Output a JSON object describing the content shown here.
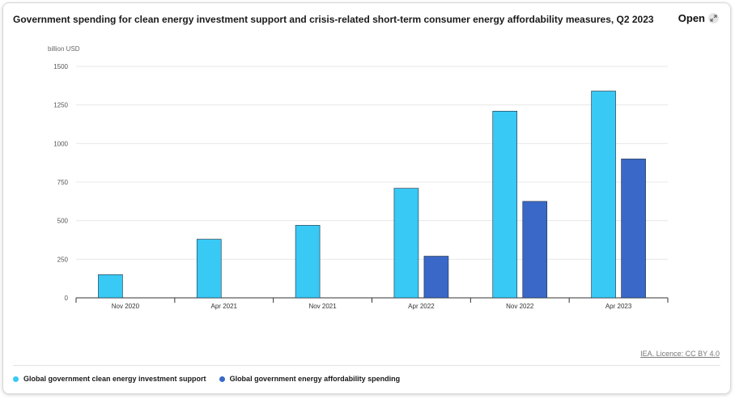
{
  "header": {
    "title": "Government spending for clean energy investment support and crisis-related short-term consumer energy affordability measures, Q2 2023",
    "open_label": "Open",
    "open_icon": "expand-icon"
  },
  "credit": "IEA. Licence: CC BY 4.0",
  "colors": {
    "clean_energy": "#38c9f5",
    "affordability": "#3a68c8",
    "grid": "#e8e8e8",
    "axis": "#333333"
  },
  "chart_data": {
    "type": "bar",
    "ylabel": "billion USD",
    "ylim": [
      0,
      1500
    ],
    "yticks": [
      "0",
      "250",
      "500",
      "750",
      "1000",
      "1250",
      "1500"
    ],
    "categories": [
      "Nov 2020",
      "Apr 2021",
      "Nov 2021",
      "Apr 2022",
      "Nov 2022",
      "Apr 2023"
    ],
    "series": [
      {
        "name": "Global government clean energy investment support",
        "values": [
          150,
          380,
          470,
          710,
          1210,
          1340
        ]
      },
      {
        "name": "Global government energy affordability spending",
        "values": [
          0,
          0,
          0,
          270,
          625,
          900
        ]
      }
    ],
    "grid": true,
    "legend_position": "bottom-left"
  }
}
